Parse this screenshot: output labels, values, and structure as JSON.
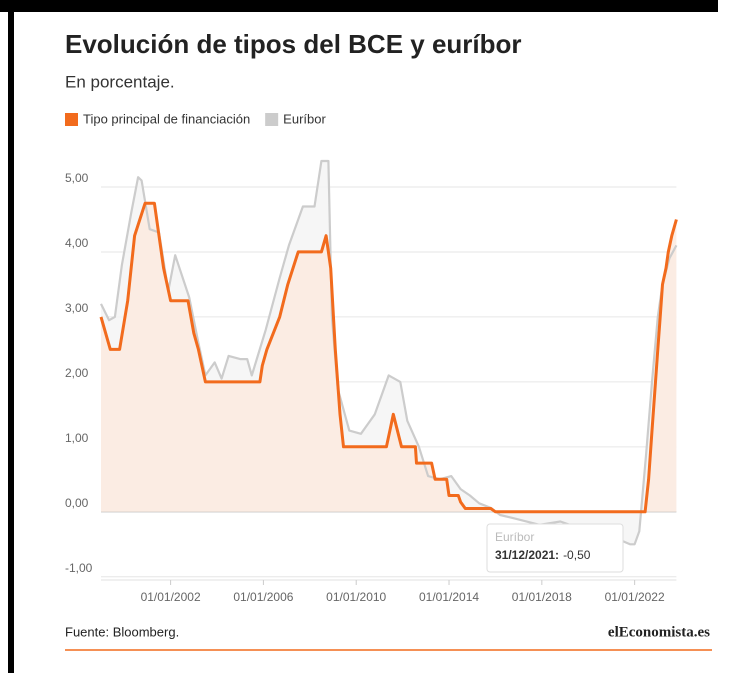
{
  "chart_data": {
    "type": "area",
    "title": "Evolución de tipos del BCE y euríbor",
    "subtitle": "En porcentaje.",
    "source": "Fuente: Bloomberg.",
    "logo": "elEconomista.es",
    "xlim": [
      1999,
      2023.8
    ],
    "xticks": [
      {
        "value": 2002,
        "label": "01/01/2002"
      },
      {
        "value": 2006,
        "label": "01/01/2006"
      },
      {
        "value": 2010,
        "label": "01/01/2010"
      },
      {
        "value": 2014,
        "label": "01/01/2014"
      },
      {
        "value": 2018,
        "label": "01/01/2018"
      },
      {
        "value": 2022,
        "label": "01/01/2022"
      }
    ],
    "ylim": [
      -1.05,
      5.5
    ],
    "yticks": [
      {
        "value": -1,
        "label": "-1,00"
      },
      {
        "value": 0,
        "label": "0,00"
      },
      {
        "value": 1,
        "label": "1,00"
      },
      {
        "value": 2,
        "label": "2,00"
      },
      {
        "value": 3,
        "label": "3,00"
      },
      {
        "value": 4,
        "label": "4,00"
      },
      {
        "value": 5,
        "label": "5,00"
      }
    ],
    "grid": true,
    "series": [
      {
        "name": "Euríbor",
        "color": "#cccccc",
        "fill": "#f4f4f4",
        "x": [
          1999.0,
          1999.35,
          1999.6,
          1999.9,
          2000.3,
          2000.6,
          2000.75,
          2001.1,
          2001.5,
          2001.9,
          2002.2,
          2002.8,
          2003.2,
          2003.5,
          2003.9,
          2004.2,
          2004.5,
          2005.0,
          2005.3,
          2005.5,
          2006.1,
          2006.7,
          2007.1,
          2007.7,
          2008.2,
          2008.5,
          2008.8,
          2008.95,
          2009.2,
          2009.7,
          2010.2,
          2010.5,
          2010.8,
          2011.4,
          2011.9,
          2012.2,
          2012.7,
          2013.1,
          2013.6,
          2014.1,
          2014.5,
          2014.9,
          2015.3,
          2015.8,
          2016.2,
          2016.8,
          2017.9,
          2018.8,
          2019.6,
          2020.5,
          2021.8,
          2022.0,
          2022.2,
          2022.5,
          2022.75,
          2023.0,
          2023.2,
          2023.5,
          2023.8
        ],
        "values": [
          3.2,
          2.95,
          3.0,
          3.8,
          4.6,
          5.15,
          5.1,
          4.35,
          4.3,
          3.4,
          3.95,
          3.3,
          2.6,
          2.1,
          2.3,
          2.05,
          2.4,
          2.35,
          2.35,
          2.1,
          2.8,
          3.6,
          4.1,
          4.7,
          4.7,
          5.4,
          5.4,
          3.0,
          1.9,
          1.25,
          1.2,
          1.35,
          1.5,
          2.1,
          2.0,
          1.4,
          1.0,
          0.55,
          0.5,
          0.55,
          0.35,
          0.25,
          0.13,
          0.06,
          -0.05,
          -0.1,
          -0.2,
          -0.15,
          -0.25,
          -0.3,
          -0.5,
          -0.5,
          -0.3,
          0.9,
          2.0,
          3.0,
          3.5,
          3.9,
          4.1
        ]
      },
      {
        "name": "Tipo principal de financiación",
        "color": "#f26b1d",
        "fill": "#fbeadf",
        "x": [
          1999.0,
          1999.4,
          1999.8,
          2000.15,
          2000.45,
          2000.9,
          2001.3,
          2001.7,
          2002.0,
          2002.75,
          2003.0,
          2003.2,
          2003.5,
          2005.85,
          2005.95,
          2006.15,
          2006.7,
          2007.05,
          2007.5,
          2008.5,
          2008.7,
          2008.9,
          2009.1,
          2009.3,
          2009.45,
          2011.3,
          2011.45,
          2011.6,
          2011.95,
          2012.55,
          2012.6,
          2013.25,
          2013.4,
          2013.9,
          2014.0,
          2014.4,
          2014.5,
          2014.7,
          2015.8,
          2016.0,
          2022.45,
          2022.6,
          2022.75,
          2022.9,
          2023.0,
          2023.1,
          2023.2,
          2023.35,
          2023.45,
          2023.6,
          2023.8
        ],
        "values": [
          3,
          2.5,
          2.5,
          3.25,
          4.25,
          4.75,
          4.75,
          3.75,
          3.25,
          3.25,
          2.75,
          2.5,
          2,
          2,
          2.25,
          2.5,
          3,
          3.5,
          4,
          4,
          4.25,
          3.75,
          2.5,
          1.5,
          1,
          1,
          1.25,
          1.5,
          1,
          1,
          0.75,
          0.75,
          0.5,
          0.5,
          0.25,
          0.25,
          0.15,
          0.05,
          0.05,
          0,
          0,
          0.5,
          1.25,
          2,
          2.5,
          3,
          3.5,
          3.75,
          4,
          4.25,
          4.5
        ]
      }
    ],
    "legend_order": [
      1,
      0
    ],
    "tooltip": {
      "series": "Euríbor",
      "date": "31/12/2021:",
      "value_label": "-0,50"
    }
  }
}
